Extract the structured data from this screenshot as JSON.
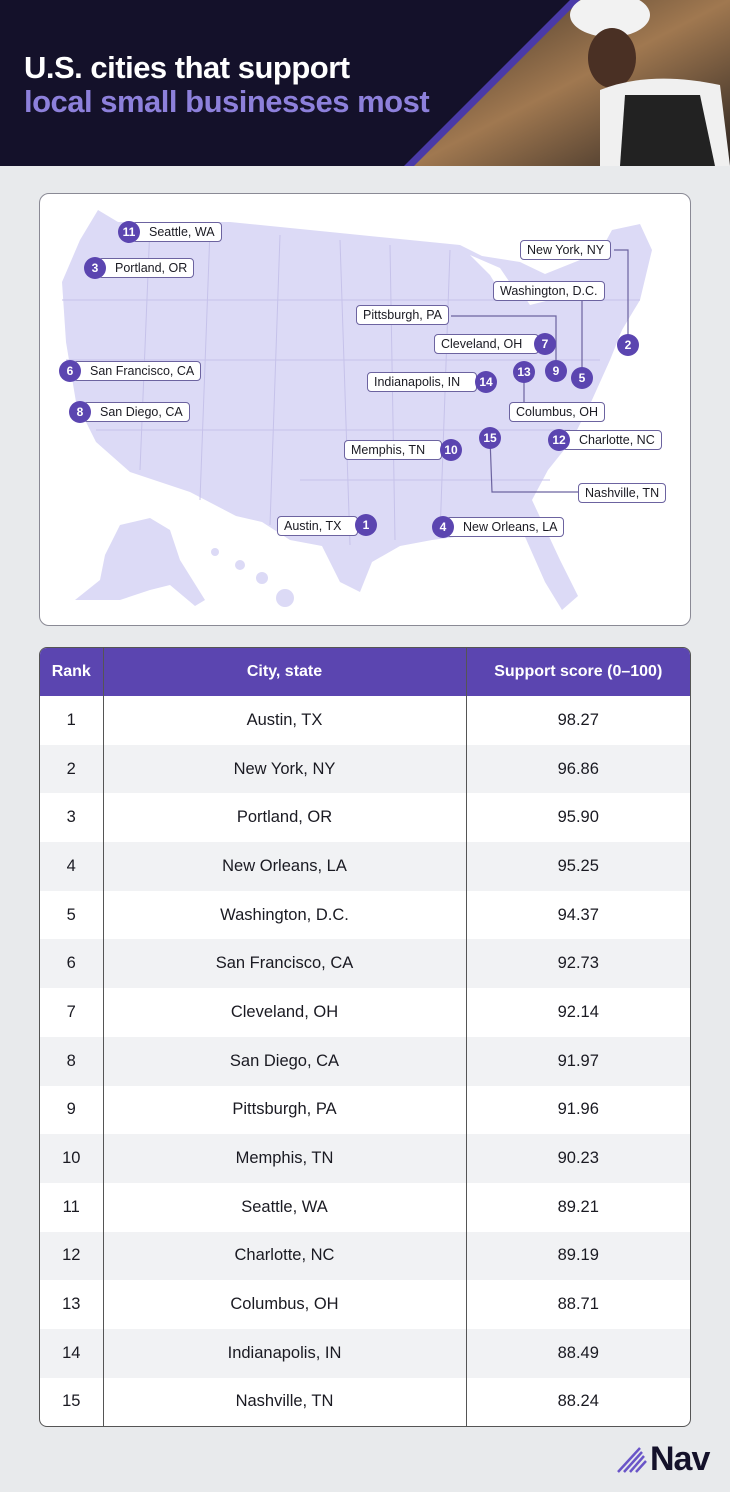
{
  "header": {
    "title_line1": "U.S. cities that support",
    "title_line2": "local small businesses most"
  },
  "map": {
    "markers": [
      {
        "rank": "1",
        "city": "Austin, TX"
      },
      {
        "rank": "2",
        "city": "New York, NY"
      },
      {
        "rank": "3",
        "city": "Portland, OR"
      },
      {
        "rank": "4",
        "city": "New Orleans, LA"
      },
      {
        "rank": "5",
        "city": "Washington, D.C."
      },
      {
        "rank": "6",
        "city": "San Francisco, CA"
      },
      {
        "rank": "7",
        "city": "Cleveland, OH"
      },
      {
        "rank": "8",
        "city": "San Diego, CA"
      },
      {
        "rank": "9",
        "city": "Pittsburgh, PA"
      },
      {
        "rank": "10",
        "city": "Memphis, TN"
      },
      {
        "rank": "11",
        "city": "Seattle, WA"
      },
      {
        "rank": "12",
        "city": "Charlotte, NC"
      },
      {
        "rank": "13",
        "city": "Columbus, OH"
      },
      {
        "rank": "14",
        "city": "Indianapolis, IN"
      },
      {
        "rank": "15",
        "city": "Nashville, TN"
      }
    ]
  },
  "table": {
    "headers": [
      "Rank",
      "City, state",
      "Support score (0–100)"
    ],
    "rows": [
      [
        "1",
        "Austin, TX",
        "98.27"
      ],
      [
        "2",
        "New York, NY",
        "96.86"
      ],
      [
        "3",
        "Portland, OR",
        "95.90"
      ],
      [
        "4",
        "New Orleans, LA",
        "95.25"
      ],
      [
        "5",
        "Washington, D.C.",
        "94.37"
      ],
      [
        "6",
        "San Francisco, CA",
        "92.73"
      ],
      [
        "7",
        "Cleveland, OH",
        "92.14"
      ],
      [
        "8",
        "San Diego, CA",
        "91.97"
      ],
      [
        "9",
        "Pittsburgh, PA",
        "91.96"
      ],
      [
        "10",
        "Memphis, TN",
        "90.23"
      ],
      [
        "11",
        "Seattle, WA",
        "89.21"
      ],
      [
        "12",
        "Charlotte, NC",
        "89.19"
      ],
      [
        "13",
        "Columbus, OH",
        "88.71"
      ],
      [
        "14",
        "Indianapolis, IN",
        "88.49"
      ],
      [
        "15",
        "Nashville, TN",
        "88.24"
      ]
    ]
  },
  "logo": "Nav",
  "colors": {
    "accent": "#5b45b0",
    "dark": "#14112a",
    "map_fill": "#dcdaf6",
    "title_purple": "#8d80db"
  }
}
